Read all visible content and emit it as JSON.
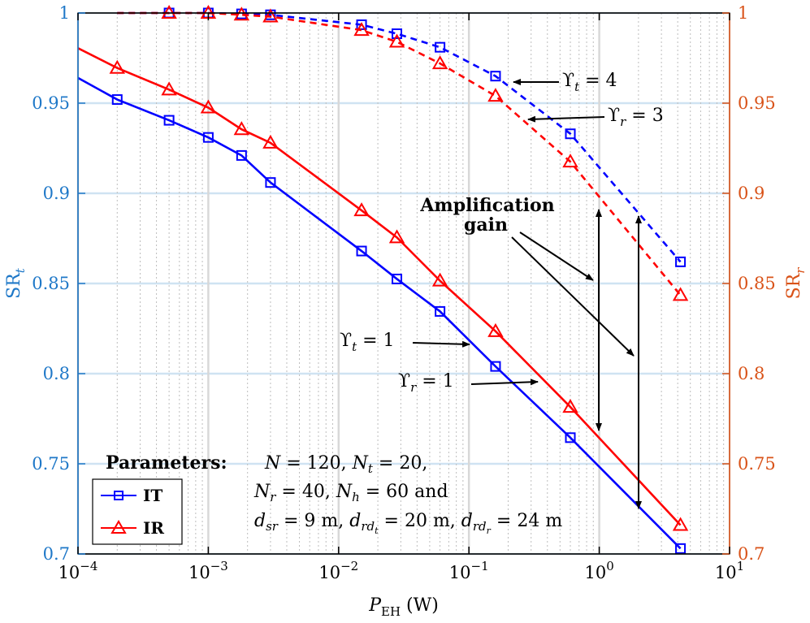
{
  "chart_data": {
    "type": "line",
    "x_scale": "log",
    "xlim": [
      0.0001,
      10
    ],
    "ylim_left": [
      0.7,
      1
    ],
    "ylim_right": [
      0.7,
      1
    ],
    "x_ticks": [
      {
        "value": 0.0001,
        "base": "10",
        "exp": "−4"
      },
      {
        "value": 0.001,
        "base": "10",
        "exp": "−3"
      },
      {
        "value": 0.01,
        "base": "10",
        "exp": "−2"
      },
      {
        "value": 0.1,
        "base": "10",
        "exp": "−1"
      },
      {
        "value": 1,
        "base": "10",
        "exp": "0"
      },
      {
        "value": 10,
        "base": "10",
        "exp": "1"
      }
    ],
    "y_ticks_left": [
      {
        "value": 0.7,
        "label": "0.7"
      },
      {
        "value": 0.75,
        "label": "0.75"
      },
      {
        "value": 0.8,
        "label": "0.8"
      },
      {
        "value": 0.85,
        "label": "0.85"
      },
      {
        "value": 0.9,
        "label": "0.9"
      },
      {
        "value": 0.95,
        "label": "0.95"
      },
      {
        "value": 1,
        "label": "1"
      }
    ],
    "y_ticks_right": [
      {
        "value": 0.7,
        "label": "0.7"
      },
      {
        "value": 0.75,
        "label": "0.75"
      },
      {
        "value": 0.8,
        "label": "0.8"
      },
      {
        "value": 0.85,
        "label": "0.85"
      },
      {
        "value": 0.9,
        "label": "0.9"
      },
      {
        "value": 0.95,
        "label": "0.95"
      },
      {
        "value": 1,
        "label": "1"
      }
    ],
    "xlabel": {
      "main": "P",
      "sub": "EH",
      "unit": " (W)"
    },
    "ylabel_left": {
      "main": "SR",
      "sub": "t"
    },
    "ylabel_right": {
      "main": "SR",
      "sub": "r"
    },
    "grid": true,
    "legend_position": "bottom-left",
    "legend": [
      {
        "label": "IT",
        "color": "#0000ff",
        "marker": "square"
      },
      {
        "label": "IR",
        "color": "#ff0000",
        "marker": "triangle"
      }
    ],
    "series": [
      {
        "legend": "IT",
        "color": "#0000ff",
        "dash": false,
        "marker": "square",
        "x": [
          0.0001,
          0.0002,
          0.0005,
          0.001,
          0.0018,
          0.003,
          0.015,
          0.028,
          0.06,
          0.16,
          0.6,
          4.2
        ],
        "y": [
          0.964,
          0.952,
          0.9405,
          0.931,
          0.921,
          0.906,
          0.868,
          0.8525,
          0.8345,
          0.804,
          0.7645,
          0.703
        ],
        "marker_x": [
          0.0002,
          0.0005,
          0.001,
          0.0018,
          0.003,
          0.015,
          0.028,
          0.06,
          0.16,
          0.6,
          4.2
        ]
      },
      {
        "legend": "IR",
        "color": "#ff0000",
        "dash": false,
        "marker": "triangle",
        "x": [
          0.0001,
          0.0002,
          0.0005,
          0.001,
          0.0018,
          0.003,
          0.015,
          0.028,
          0.06,
          0.16,
          0.6,
          4.2
        ],
        "y": [
          0.9805,
          0.9695,
          0.9575,
          0.9475,
          0.9355,
          0.928,
          0.8905,
          0.8755,
          0.8515,
          0.8235,
          0.7815,
          0.716
        ],
        "marker_x": [
          0.0002,
          0.0005,
          0.001,
          0.0018,
          0.003,
          0.015,
          0.028,
          0.06,
          0.16,
          0.6,
          4.2
        ]
      },
      {
        "legend": "IT",
        "color": "#0000ff",
        "dash": true,
        "marker": "square",
        "x": [
          0.0002,
          0.0005,
          0.001,
          0.0018,
          0.003,
          0.015,
          0.028,
          0.06,
          0.16,
          0.6,
          4.2
        ],
        "y": [
          1.0,
          1.0,
          1.0,
          0.9995,
          0.999,
          0.9935,
          0.9885,
          0.981,
          0.965,
          0.933,
          0.862
        ],
        "marker_x": [
          0.0005,
          0.001,
          0.0018,
          0.003,
          0.015,
          0.028,
          0.06,
          0.16,
          0.6,
          4.2
        ]
      },
      {
        "legend": "IR",
        "color": "#ff0000",
        "dash": true,
        "marker": "triangle",
        "x": [
          0.0002,
          0.0005,
          0.001,
          0.0018,
          0.003,
          0.015,
          0.028,
          0.06,
          0.16,
          0.6,
          4.2
        ],
        "y": [
          1.0,
          1.0,
          1.0,
          0.999,
          0.998,
          0.9905,
          0.984,
          0.972,
          0.954,
          0.9175,
          0.8435
        ],
        "marker_x": [
          0.0005,
          0.001,
          0.0018,
          0.003,
          0.015,
          0.028,
          0.06,
          0.16,
          0.6,
          4.2
        ]
      }
    ],
    "annotations": {
      "upsilon_t4": {
        "main": "ϒ",
        "sub": "t",
        "rest": " = 4"
      },
      "upsilon_r3": {
        "main": "ϒ",
        "sub": "r",
        "rest": " = 3"
      },
      "upsilon_t1": {
        "main": "ϒ",
        "sub": "t",
        "rest": " = 1"
      },
      "upsilon_r1": {
        "main": "ϒ",
        "sub": "r",
        "rest": " = 1"
      },
      "amplification_line1": "Amplification",
      "amplification_line2": "gain",
      "parameters_label": "Parameters:",
      "params_line1": "N = 120, N_t = 20,",
      "params_line2": "N_r = 40, N_h = 60 and",
      "params_line3": "d_sr = 9 m, d_rd_t = 20 m, d_rd_r = 24 m"
    }
  }
}
